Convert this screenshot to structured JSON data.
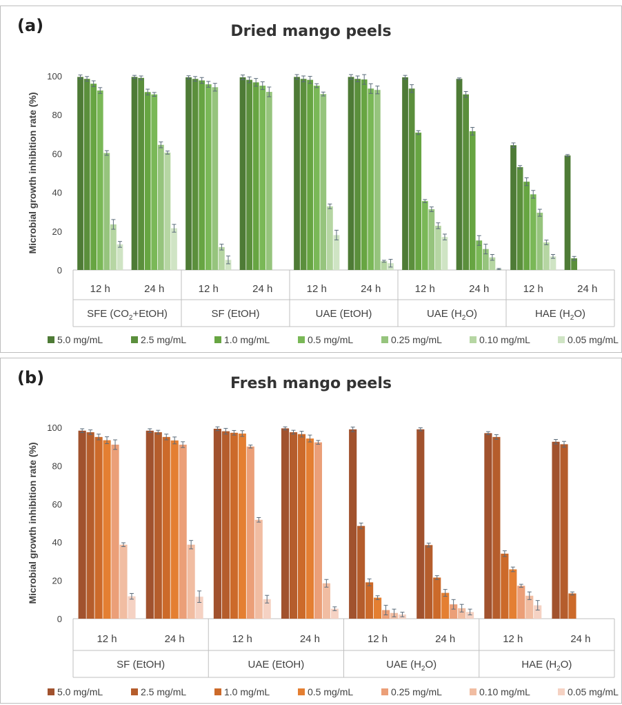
{
  "chart_data": [
    {
      "type": "bar",
      "panel": "(a)",
      "title": "Dried mango peels",
      "ylabel": "Microbial growth inhibition rate (%)",
      "ylim": [
        0,
        100
      ],
      "yticks": [
        0,
        20,
        40,
        60,
        80,
        100
      ],
      "grid": false,
      "legend_position": "bottom",
      "colors": [
        "#4e7b36",
        "#5b8f3c",
        "#67a542",
        "#7ab857",
        "#96c47d",
        "#b6d6a3",
        "#cfe4c4"
      ],
      "series_names": [
        "5.0 mg/mL",
        "2.5 mg/mL",
        "1.0 mg/mL",
        "0.5 mg/mL",
        "0.25 mg/mL",
        "0.10 mg/mL",
        "0.05 mg/mL"
      ],
      "groups": [
        {
          "method": "SFE (CO2+EtOH)",
          "method_base": "SFE (CO",
          "method_sub": "2",
          "method_tail": "+EtOH)",
          "times": [
            {
              "label": "12 h",
              "values": [
                99.5,
                98.5,
                96,
                92.5,
                60.3,
                23.5,
                13.2
              ],
              "errors": [
                1,
                1.2,
                1.5,
                1.5,
                1.2,
                2.5,
                1.5
              ]
            },
            {
              "label": "24 h",
              "values": [
                99.5,
                99,
                91.7,
                90.5,
                64.5,
                60.5,
                21.5
              ],
              "errors": [
                0.8,
                1,
                1.5,
                1,
                1.5,
                0.8,
                2
              ]
            }
          ]
        },
        {
          "method": "SF (EtOH)",
          "method_base": "SF (EtOH)",
          "method_sub": "",
          "method_tail": "",
          "times": [
            {
              "label": "12 h",
              "values": [
                99.3,
                98.5,
                97.7,
                95.7,
                94.2,
                11.8,
                5.2
              ],
              "errors": [
                0.8,
                1.2,
                1.5,
                1.5,
                2,
                1.5,
                2
              ]
            },
            {
              "label": "24 h",
              "values": [
                99.3,
                98,
                96.7,
                95,
                91.8,
                null,
                null
              ],
              "errors": [
                1.2,
                1.5,
                2,
                2,
                2.5,
                0,
                0
              ]
            }
          ]
        },
        {
          "method": "UAE (EtOH)",
          "method_base": "UAE (EtOH)",
          "method_sub": "",
          "method_tail": "",
          "times": [
            {
              "label": "12 h",
              "values": [
                99.5,
                98.5,
                98,
                95,
                90.7,
                32.8,
                18
              ],
              "errors": [
                1.2,
                1.5,
                1.8,
                1,
                1,
                1.2,
                2.5
              ]
            },
            {
              "label": "24 h",
              "values": [
                99.5,
                98.5,
                98.2,
                93.5,
                92.8,
                4.5,
                3.5
              ],
              "errors": [
                1.2,
                1.5,
                2.5,
                2.5,
                2,
                0.5,
                2
              ]
            }
          ]
        },
        {
          "method": "UAE (H2O)",
          "method_base": "UAE (H",
          "method_sub": "2",
          "method_tail": "O)",
          "times": [
            {
              "label": "12 h",
              "values": [
                99.3,
                93.5,
                70.8,
                35.5,
                31.3,
                22.8,
                17
              ],
              "errors": [
                1,
                2,
                1,
                0.8,
                1.2,
                1.5,
                1.5
              ]
            },
            {
              "label": "24 h",
              "values": [
                98.5,
                90.5,
                71.5,
                15.2,
                10.8,
                6.5,
                0.5
              ],
              "errors": [
                0.5,
                1.5,
                2,
                2.5,
                2.5,
                1.5,
                0.3
              ]
            }
          ]
        },
        {
          "method": "HAE (H2O)",
          "method_base": "HAE (H",
          "method_sub": "2",
          "method_tail": "O)",
          "times": [
            {
              "label": "12 h",
              "values": [
                64.3,
                53,
                45.5,
                39,
                29.5,
                14.2,
                7
              ],
              "errors": [
                1.2,
                0.8,
                2,
                2,
                1.8,
                1.2,
                1
              ]
            },
            {
              "label": "24 h",
              "values": [
                59,
                6,
                null,
                null,
                null,
                null,
                null
              ],
              "errors": [
                0.5,
                1,
                0,
                0,
                0,
                0,
                0
              ]
            }
          ]
        }
      ]
    },
    {
      "type": "bar",
      "panel": "(b)",
      "title": "Fresh mango peels",
      "ylabel": "Microbial growth inhibition rate (%)",
      "ylim": [
        0,
        100
      ],
      "yticks": [
        0,
        20,
        40,
        60,
        80,
        100
      ],
      "grid": false,
      "legend_position": "bottom",
      "colors": [
        "#a1522e",
        "#b55d2c",
        "#cc6a2a",
        "#e47f32",
        "#eb9f78",
        "#f1bda2",
        "#f5d2c3"
      ],
      "series_names": [
        "5.0 mg/mL",
        "2.5 mg/mL",
        "1.0 mg/mL",
        "0.5 mg/mL",
        "0.25 mg/mL",
        "0.10 mg/mL",
        "0.05 mg/mL"
      ],
      "groups": [
        {
          "method": "SF (EtOH)",
          "method_base": "SF (EtOH)",
          "method_sub": "",
          "method_tail": "",
          "times": [
            {
              "label": "12 h",
              "values": [
                98.3,
                97.5,
                95,
                93.3,
                91,
                38.7,
                11.7
              ],
              "errors": [
                1,
                1.2,
                1.5,
                1.8,
                2.5,
                1,
                1.5
              ]
            },
            {
              "label": "24 h",
              "values": [
                98.3,
                97.5,
                95,
                93.2,
                91,
                38.7,
                11.5
              ],
              "errors": [
                1,
                1,
                1.5,
                1.8,
                1.5,
                2.2,
                3
              ]
            }
          ]
        },
        {
          "method": "UAE (EtOH)",
          "method_base": "UAE (EtOH)",
          "method_sub": "",
          "method_tail": "",
          "times": [
            {
              "label": "12 h",
              "values": [
                99.3,
                98,
                97.2,
                96.8,
                90,
                51.7,
                10.2
              ],
              "errors": [
                1,
                1.5,
                1.2,
                1.5,
                0.8,
                1.2,
                2
              ]
            },
            {
              "label": "24 h",
              "values": [
                99.5,
                97.5,
                96.5,
                94.2,
                92.2,
                18.5,
                5.2
              ],
              "errors": [
                0.8,
                1,
                1.5,
                1.8,
                1,
                2,
                1
              ]
            }
          ]
        },
        {
          "method": "UAE (H2O)",
          "method_base": "UAE (H",
          "method_sub": "2",
          "method_tail": "O)",
          "times": [
            {
              "label": "12 h",
              "values": [
                99,
                48.5,
                19,
                11,
                4.5,
                3,
                2.2
              ],
              "errors": [
                1.2,
                1.5,
                1.8,
                1,
                2.5,
                2,
                1.2
              ]
            },
            {
              "label": "24 h",
              "values": [
                99,
                38.5,
                21.5,
                13.5,
                7.5,
                5.5,
                3.5
              ],
              "errors": [
                0.8,
                1,
                1,
                1.8,
                2.5,
                2,
                1.5
              ]
            }
          ]
        },
        {
          "method": "HAE (H2O)",
          "method_base": "HAE (H",
          "method_sub": "2",
          "method_tail": "O)",
          "times": [
            {
              "label": "12 h",
              "values": [
                97,
                95,
                34,
                25.8,
                17.2,
                12,
                7
              ],
              "errors": [
                0.8,
                1.2,
                1.5,
                1.2,
                0.8,
                2,
                2.5
              ]
            },
            {
              "label": "24 h",
              "values": [
                92.5,
                91.2,
                13.2,
                null,
                null,
                null,
                null
              ],
              "errors": [
                1.2,
                1.5,
                0.8,
                0,
                0,
                0,
                0
              ]
            }
          ]
        }
      ]
    }
  ]
}
